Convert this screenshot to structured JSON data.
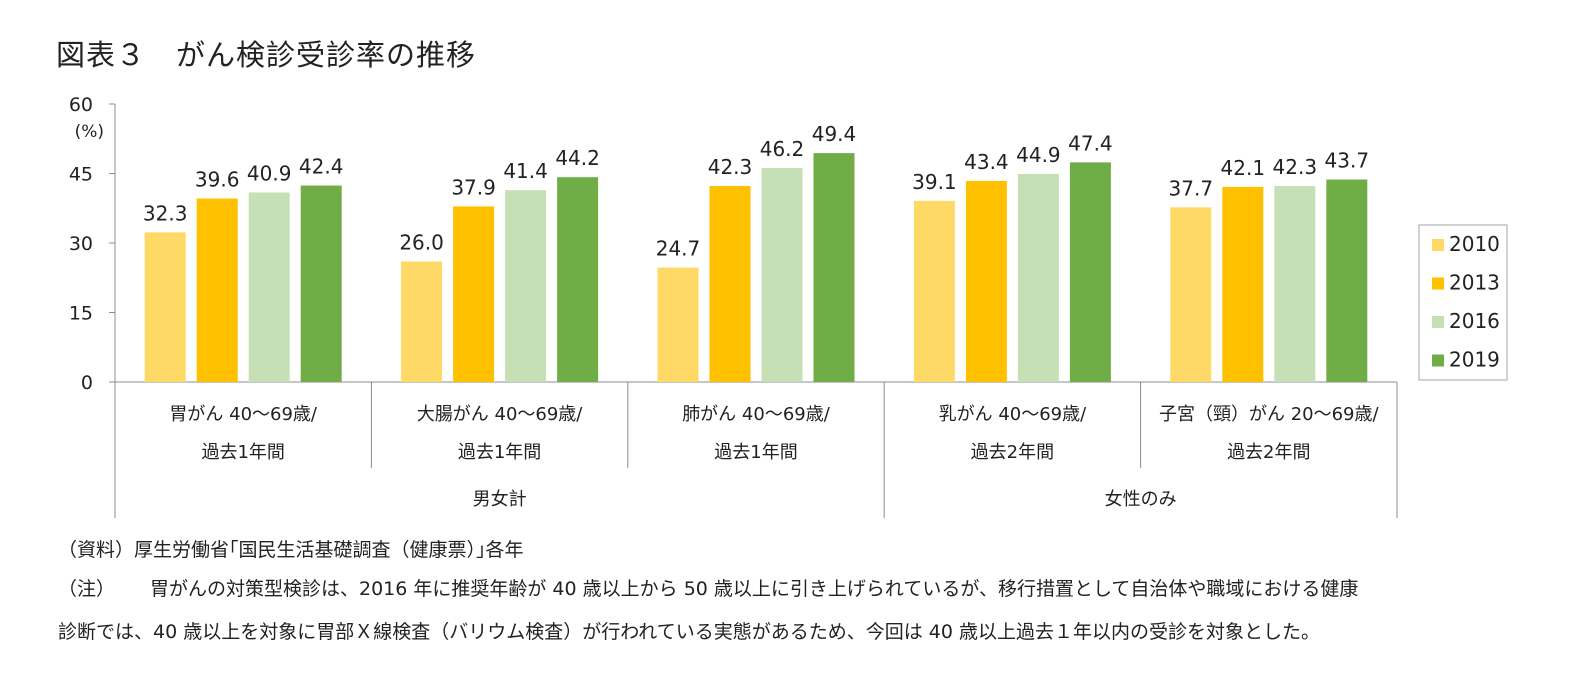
{
  "title": "図表３　がん検診受診率の推移",
  "chart_data": {
    "type": "bar",
    "title": "図表３　がん検診受診率の推移",
    "unit_label": "(%)",
    "ylim": [
      0,
      60
    ],
    "yticks": [
      "0",
      "15",
      "30",
      "45",
      "60"
    ],
    "categories": [
      [
        "胃がん 40～69歳/",
        "過去1年間"
      ],
      [
        "大腸がん 40～69歳/",
        "過去1年間"
      ],
      [
        "肺がん 40～69歳/",
        "過去1年間"
      ],
      [
        "乳がん 40～69歳/",
        "過去2年間"
      ],
      [
        "子宮（頸）がん 20～69歳/",
        "過去2年間"
      ]
    ],
    "groups": [
      {
        "label": "男女計",
        "categories": [
          0,
          1,
          2
        ]
      },
      {
        "label": "女性のみ",
        "categories": [
          3,
          4
        ]
      }
    ],
    "series": [
      {
        "name": "2010",
        "color": "#FFD966",
        "values": [
          32.3,
          26.0,
          24.7,
          39.1,
          37.7
        ],
        "labels": [
          "32.3",
          "26.0",
          "24.7",
          "39.1",
          "37.7"
        ]
      },
      {
        "name": "2013",
        "color": "#FFC000",
        "values": [
          39.6,
          37.9,
          42.3,
          43.4,
          42.1
        ],
        "labels": [
          "39.6",
          "37.9",
          "42.3",
          "43.4",
          "42.1"
        ]
      },
      {
        "name": "2016",
        "color": "#C5E0B4",
        "values": [
          40.9,
          41.4,
          46.2,
          44.9,
          42.3
        ],
        "labels": [
          "40.9",
          "41.4",
          "46.2",
          "44.9",
          "42.3"
        ]
      },
      {
        "name": "2019",
        "color": "#70AD47",
        "values": [
          42.4,
          44.2,
          49.4,
          47.4,
          43.7
        ],
        "labels": [
          "42.4",
          "44.2",
          "49.4",
          "47.4",
          "43.7"
        ]
      }
    ],
    "legend_position": "right",
    "grid": false
  },
  "notes": {
    "source": "（資料）厚生労働省｢国民生活基礎調査（健康票）｣各年",
    "note_label": "（注）",
    "note_line1": "胃がんの対策型検診は、2016 年に推奨年齢が 40 歳以上から 50 歳以上に引き上げられているが、移行措置として自治体や職域における健康",
    "note_line2": "診断では、40 歳以上を対象に胃部Ｘ線検査（バリウム検査）が行われている実態があるため、今回は 40 歳以上過去１年以内の受診を対象とした。"
  }
}
